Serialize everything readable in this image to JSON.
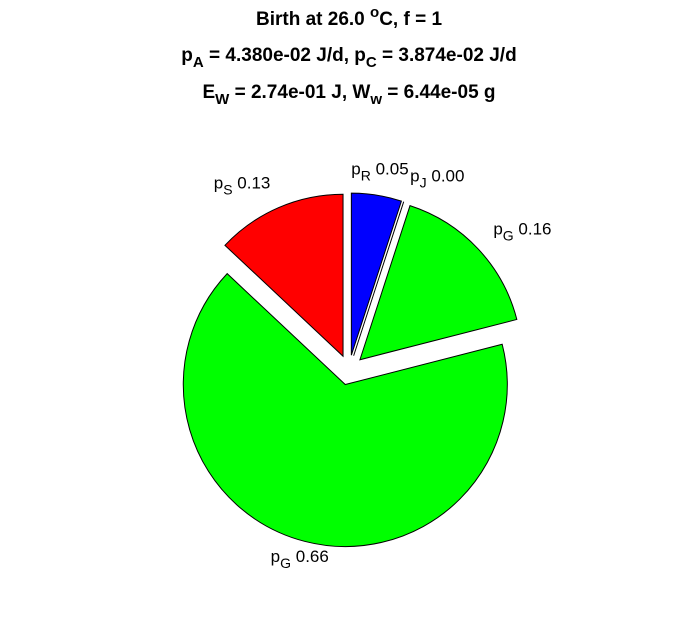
{
  "chart_data": {
    "type": "pie",
    "title": [
      [
        {
          "t": "Birth at 26.0 "
        },
        {
          "t": "o",
          "shift": "sup"
        },
        {
          "t": "C, f = 1"
        }
      ],
      [
        {
          "t": "p"
        },
        {
          "t": "A",
          "shift": "sub"
        },
        {
          "t": " = 4.380e-02 J/d, p"
        },
        {
          "t": "C",
          "shift": "sub"
        },
        {
          "t": " = 3.874e-02 J/d"
        }
      ],
      [
        {
          "t": "E"
        },
        {
          "t": "W",
          "shift": "sub"
        },
        {
          "t": " = 2.74e-01 J, W"
        },
        {
          "t": "w",
          "shift": "sub"
        },
        {
          "t": " = 6.44e-05 g"
        }
      ]
    ],
    "labels": [
      {
        "base": "p",
        "sub": "R"
      },
      {
        "base": "p",
        "sub": "J"
      },
      {
        "base": "p",
        "sub": "G"
      },
      {
        "base": "p",
        "sub": "G"
      },
      {
        "base": "p",
        "sub": "S"
      }
    ],
    "values": [
      0.05,
      0,
      0.16,
      0.66,
      0.13
    ],
    "value_labels": [
      "0.05",
      "0.00",
      "0.16",
      "0.66",
      "0.13"
    ],
    "colors": [
      "#0000ff",
      "#ffffff",
      "#00ff00",
      "#00ff00",
      "#ff0000"
    ],
    "explode": true
  }
}
